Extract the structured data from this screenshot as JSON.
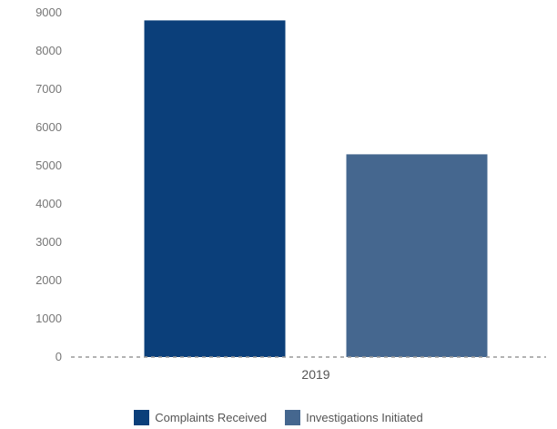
{
  "chart_data": {
    "type": "bar",
    "categories": [
      "2019"
    ],
    "series": [
      {
        "name": "Complaints Received",
        "values": [
          8800
        ],
        "color": "#0b3f7a"
      },
      {
        "name": "Investigations Initiated",
        "values": [
          5300
        ],
        "color": "#45678f"
      }
    ],
    "y_ticks": [
      "0",
      "1000",
      "2000",
      "3000",
      "4000",
      "5000",
      "6000",
      "7000",
      "8000",
      "9000"
    ],
    "ylim": [
      0,
      9000
    ],
    "grid": false,
    "baseline": "dashed",
    "legend_position": "bottom"
  }
}
